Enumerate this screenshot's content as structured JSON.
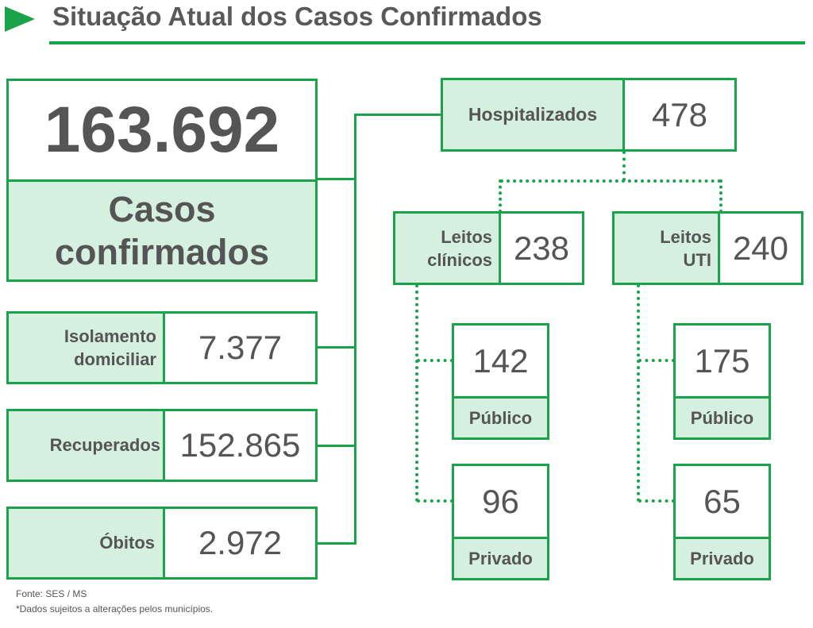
{
  "header": {
    "title": "Situação Atual dos Casos Confirmados"
  },
  "total": {
    "value": "163.692",
    "label_line1": "Casos",
    "label_line2": "confirmados"
  },
  "isolamento": {
    "label_line1": "Isolamento",
    "label_line2": "domiciliar",
    "value": "7.377"
  },
  "recuperados": {
    "label": "Recuperados",
    "value": "152.865"
  },
  "obitos": {
    "label": "Óbitos",
    "value": "2.972"
  },
  "hospitalizados": {
    "label": "Hospitalizados",
    "value": "478"
  },
  "leitos_clinicos": {
    "label_line1": "Leitos",
    "label_line2": "clínicos",
    "value": "238",
    "publico": {
      "value": "142",
      "label": "Público"
    },
    "privado": {
      "value": "96",
      "label": "Privado"
    }
  },
  "leitos_uti": {
    "label_line1": "Leitos",
    "label_line2": "UTI",
    "value": "240",
    "publico": {
      "value": "175",
      "label": "Público"
    },
    "privado": {
      "value": "65",
      "label": "Privado"
    }
  },
  "footer": {
    "source": "Fonte: SES / MS",
    "note": "*Dados sujeitos a alterações pelos municípios."
  },
  "colors": {
    "accent": "#1aa34a",
    "label_fill": "#d6f0df",
    "text": "#555555"
  }
}
